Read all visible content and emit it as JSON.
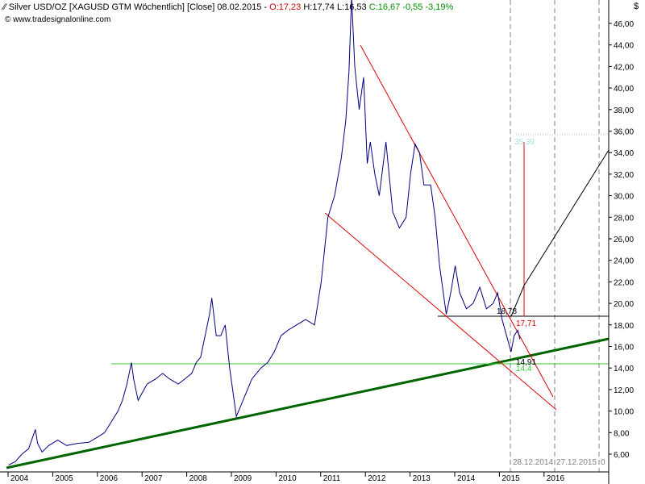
{
  "header": {
    "title": "Silver USD/OZ [XAGUSD GTM  Wöchentlich] [Close] 08.02.2015",
    "open": "O:17,23",
    "hl": "H:17,74 L:16,53",
    "close": "C:16,67",
    "change": "-0,55 -3,19%",
    "source": "www.tradesignalonline.com",
    "unit": "$"
  },
  "colors": {
    "price": "#000080",
    "trend_support": "#006400",
    "horizontal_support": "#33cc33",
    "channel": "#e00000",
    "target": "#000000",
    "projection_label": "#aadddd",
    "grid": "#cccccc",
    "date_marker": "#808080"
  },
  "chart_data": {
    "type": "line",
    "title": "Silver USD/OZ [XAGUSD GTM  Wöchentlich] [Close] 08.02.2015",
    "ylabel": "$",
    "ylim": [
      5,
      47
    ],
    "y_ticks": [
      "6,00",
      "8,00",
      "10,00",
      "12,00",
      "14,00",
      "16,00",
      "18,00",
      "20,00",
      "22,00",
      "24,00",
      "26,00",
      "28,00",
      "30,00",
      "32,00",
      "34,00",
      "36,00",
      "38,00",
      "40,00",
      "42,00",
      "44,00",
      "46,00"
    ],
    "x_ticks": [
      "2004",
      "2005",
      "2006",
      "2007",
      "2008",
      "2009",
      "2010",
      "2011",
      "2012",
      "2013",
      "2014",
      "2015",
      "2016"
    ],
    "xlim": [
      2003.6,
      2017.2
    ],
    "grid": false,
    "series": [
      {
        "name": "Silver USD/OZ",
        "x": [
          2003.65,
          2003.8,
          2003.95,
          2004.1,
          2004.25,
          2004.3,
          2004.4,
          2004.55,
          2004.75,
          2004.95,
          2005.2,
          2005.45,
          2005.65,
          2005.8,
          2005.95,
          2006.1,
          2006.2,
          2006.3,
          2006.4,
          2006.45,
          2006.55,
          2006.75,
          2006.95,
          2007.1,
          2007.25,
          2007.45,
          2007.6,
          2007.75,
          2007.85,
          2007.95,
          2008.05,
          2008.15,
          2008.2,
          2008.3,
          2008.4,
          2008.5,
          2008.6,
          2008.7,
          2008.75,
          2008.85,
          2008.95,
          2009.1,
          2009.3,
          2009.45,
          2009.6,
          2009.75,
          2009.9,
          2010.1,
          2010.3,
          2010.5,
          2010.65,
          2010.8,
          2010.95,
          2011.1,
          2011.2,
          2011.27,
          2011.33,
          2011.4,
          2011.5,
          2011.6,
          2011.68,
          2011.75,
          2011.85,
          2011.95,
          2012.1,
          2012.25,
          2012.4,
          2012.55,
          2012.65,
          2012.75,
          2012.85,
          2012.95,
          2013.1,
          2013.2,
          2013.3,
          2013.45,
          2013.55,
          2013.65,
          2013.75,
          2013.9,
          2014.05,
          2014.2,
          2014.35,
          2014.5,
          2014.6,
          2014.7,
          2014.8,
          2014.9,
          2014.97,
          2015.05,
          2015.1
        ],
        "y": [
          5.0,
          5.3,
          6.0,
          6.5,
          8.3,
          7.0,
          6.2,
          6.8,
          7.3,
          6.8,
          7.0,
          7.1,
          7.6,
          8.0,
          9.0,
          10.0,
          11.0,
          12.5,
          14.5,
          13.0,
          11.0,
          12.5,
          13.0,
          13.5,
          13.0,
          12.5,
          13.0,
          13.5,
          14.5,
          15.0,
          17.0,
          19.0,
          20.5,
          17.0,
          17.0,
          18.0,
          14.0,
          11.0,
          9.5,
          10.5,
          11.5,
          13.0,
          14.0,
          14.5,
          15.5,
          17.0,
          17.5,
          18.0,
          18.5,
          18.0,
          22.0,
          28.0,
          30.0,
          33.5,
          37.0,
          41.5,
          48.5,
          42.0,
          38.0,
          41.0,
          33.0,
          35.0,
          32.0,
          30.0,
          35.0,
          28.5,
          27.0,
          28.0,
          32.0,
          34.8,
          34.0,
          31.0,
          31.0,
          28.0,
          23.5,
          19.0,
          21.0,
          23.5,
          21.0,
          19.5,
          20.0,
          21.5,
          19.5,
          20.0,
          21.0,
          18.5,
          17.0,
          15.5,
          17.0,
          17.5,
          16.67
        ]
      }
    ],
    "annotations": {
      "resistance_level": "18,78",
      "current_price": "17,71",
      "support_values": "14,91",
      "support_values_2": "14,4",
      "projection_target": "35,39",
      "date_marker_1": "28.12.2014",
      "date_marker_2": "27.12.2015",
      "date_marker_3": "0"
    }
  }
}
